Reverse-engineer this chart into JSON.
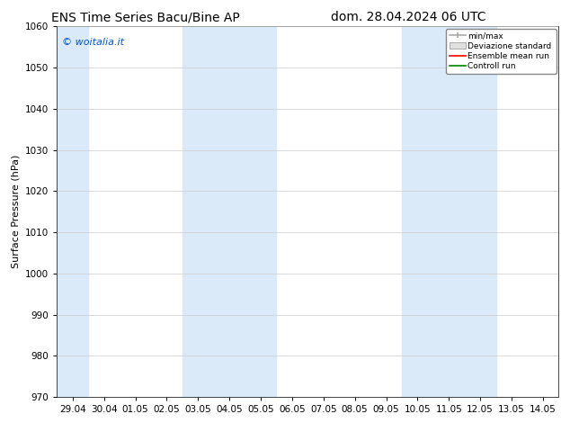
{
  "title_left": "ENS Time Series Bacu/Bine AP",
  "title_right": "dom. 28.04.2024 06 UTC",
  "ylabel": "Surface Pressure (hPa)",
  "ylim": [
    970,
    1060
  ],
  "yticks": [
    970,
    980,
    990,
    1000,
    1010,
    1020,
    1030,
    1040,
    1050,
    1060
  ],
  "xtick_labels": [
    "29.04",
    "30.04",
    "01.05",
    "02.05",
    "03.05",
    "04.05",
    "05.05",
    "06.05",
    "07.05",
    "08.05",
    "09.05",
    "10.05",
    "11.05",
    "12.05",
    "13.05",
    "14.05"
  ],
  "watermark": "© woitalia.it",
  "watermark_color": "#0055cc",
  "background_color": "#ffffff",
  "band_color": "#daeaf8",
  "legend_labels": [
    "min/max",
    "Deviazione standard",
    "Ensemble mean run",
    "Controll run"
  ],
  "legend_colors": [
    "#aaaaaa",
    "#cccccc",
    "#ff0000",
    "#008000"
  ],
  "title_fontsize": 10,
  "ylabel_fontsize": 8,
  "tick_fontsize": 7.5
}
